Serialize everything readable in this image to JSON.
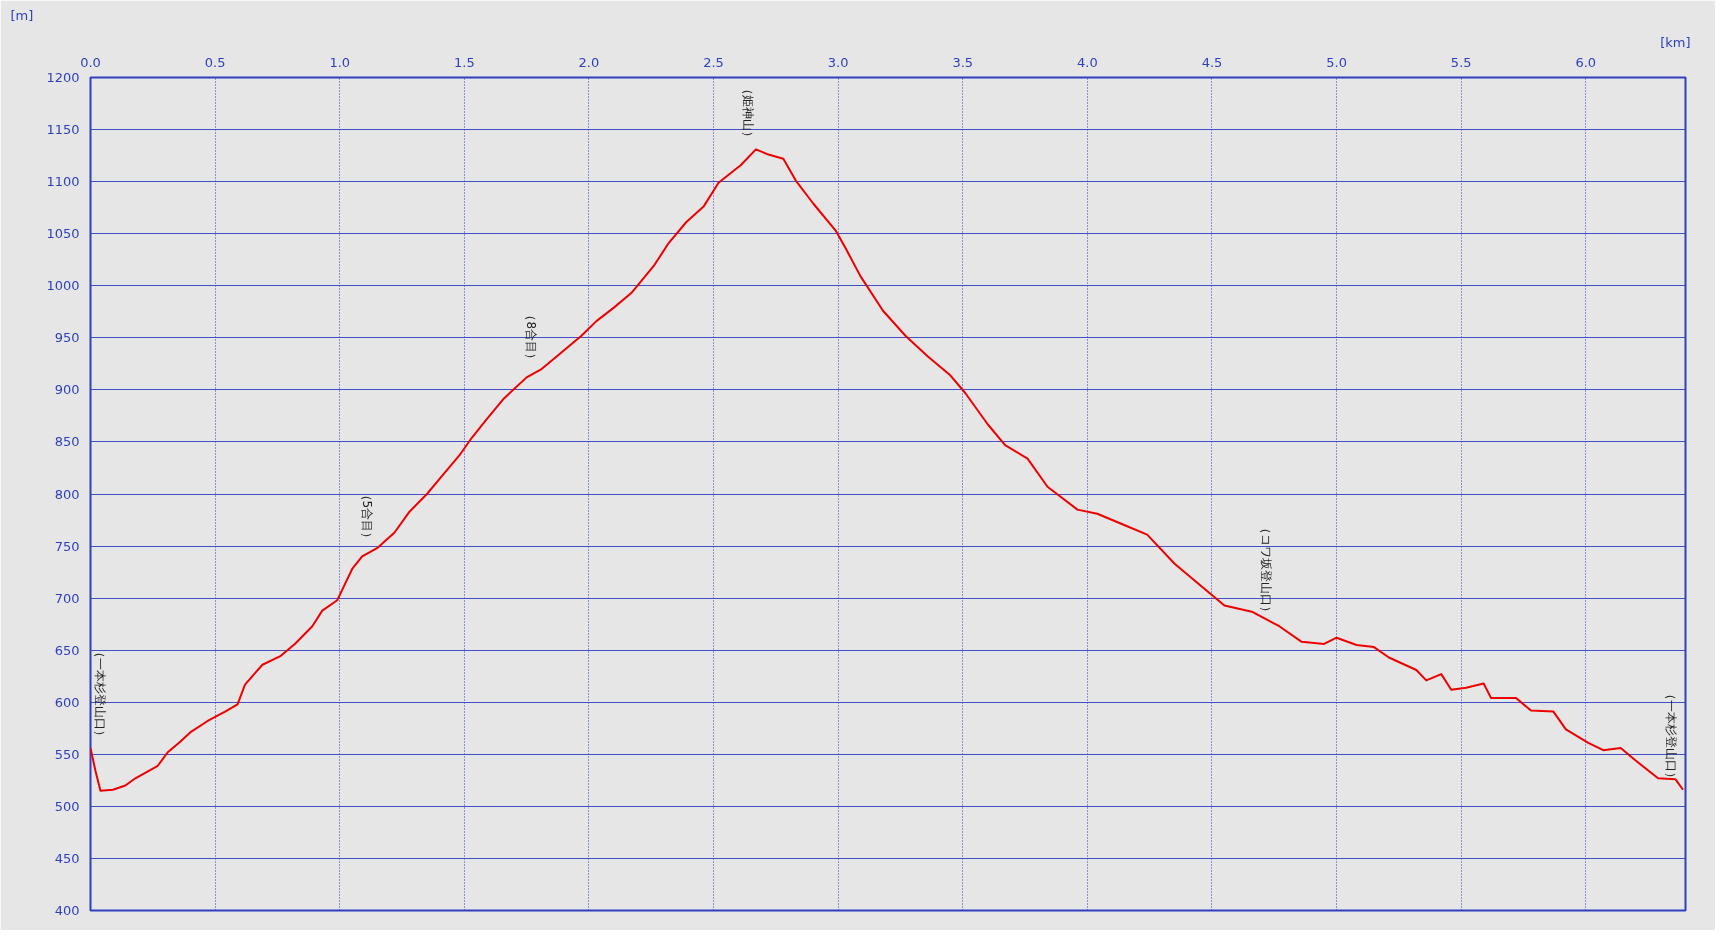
{
  "chart_data": {
    "type": "line",
    "xlabel": "[km]",
    "ylabel": "[m]",
    "xlim": [
      0,
      6.4
    ],
    "ylim": [
      400,
      1200
    ],
    "xticks": [
      {
        "value": 0,
        "label": "0.0"
      },
      0.5,
      {
        "value": 1,
        "label": "1.0"
      },
      1.5,
      {
        "value": 2,
        "label": "2.0"
      },
      2.5,
      {
        "value": 3,
        "label": "3.0"
      },
      3.5,
      {
        "value": 4,
        "label": "4.0"
      },
      4.5,
      {
        "value": 5,
        "label": "5.0"
      },
      5.5,
      {
        "value": 6,
        "label": "6.0"
      }
    ],
    "yticks": [
      400,
      450,
      500,
      550,
      600,
      650,
      700,
      750,
      800,
      850,
      900,
      950,
      1000,
      1050,
      1100,
      1150,
      1200
    ],
    "grid": true,
    "line_style": "solid",
    "marker": "none",
    "series": [
      {
        "color": "#ee0000",
        "x": [
          0,
          0.02,
          0.04,
          0.09,
          0.14,
          0.18,
          0.27,
          0.31,
          0.36,
          0.4,
          0.47,
          0.54,
          0.59,
          0.62,
          0.69,
          0.76,
          0.82,
          0.89,
          0.93,
          0.99,
          1.02,
          1.05,
          1.09,
          1.15,
          1.22,
          1.28,
          1.35,
          1.42,
          1.48,
          1.53,
          1.59,
          1.66,
          1.75,
          1.81,
          1.88,
          1.97,
          2.03,
          2.1,
          2.17,
          2.26,
          2.32,
          2.39,
          2.46,
          2.52,
          2.61,
          2.67,
          2.72,
          2.78,
          2.83,
          2.9,
          2.99,
          3.03,
          3.09,
          3.18,
          3.27,
          3.36,
          3.45,
          3.51,
          3.6,
          3.67,
          3.76,
          3.84,
          3.96,
          4.04,
          4.15,
          4.24,
          4.35,
          4.46,
          4.55,
          4.66,
          4.77,
          4.86,
          4.95,
          5.0,
          5.08,
          5.15,
          5.21,
          5.32,
          5.36,
          5.42,
          5.46,
          5.52,
          5.59,
          5.62,
          5.72,
          5.78,
          5.87,
          5.92,
          6.01,
          6.07,
          6.14,
          6.2,
          6.29,
          6.36,
          6.39
        ],
        "values": [
          556,
          534,
          515,
          516,
          520,
          527,
          539,
          552,
          562,
          571,
          582,
          591,
          598,
          617,
          636,
          644,
          656,
          673,
          688,
          698,
          713,
          728,
          740,
          748,
          763,
          783,
          800,
          820,
          837,
          854,
          872,
          892,
          912,
          920,
          934,
          952,
          966,
          979,
          993,
          1019,
          1041,
          1061,
          1076,
          1099,
          1116,
          1131,
          1126,
          1122,
          1101,
          1079,
          1053,
          1036,
          1009,
          976,
          952,
          932,
          914,
          897,
          867,
          847,
          834,
          807,
          785,
          781,
          770,
          761,
          733,
          711,
          693,
          687,
          673,
          658,
          656,
          662,
          655,
          653,
          643,
          631,
          621,
          627,
          612,
          614,
          618,
          604,
          604,
          592,
          591,
          574,
          561,
          554,
          556,
          544,
          527,
          526,
          516
        ]
      }
    ],
    "annotations": [
      {
        "text": "（一本杉登山口）",
        "x": 0,
        "y": 556
      },
      {
        "text": "（5合目）",
        "x": 1.14,
        "y": 746
      },
      {
        "text": "（8合目）",
        "x": 1.8,
        "y": 918
      },
      {
        "text": "（姫神山）",
        "x": 2.67,
        "y": 1131
      },
      {
        "text": "（コワ坂登山口）",
        "x": 4.75,
        "y": 675
      },
      {
        "text": "（一本杉登山口）",
        "x": 6.39,
        "y": 516
      }
    ]
  }
}
